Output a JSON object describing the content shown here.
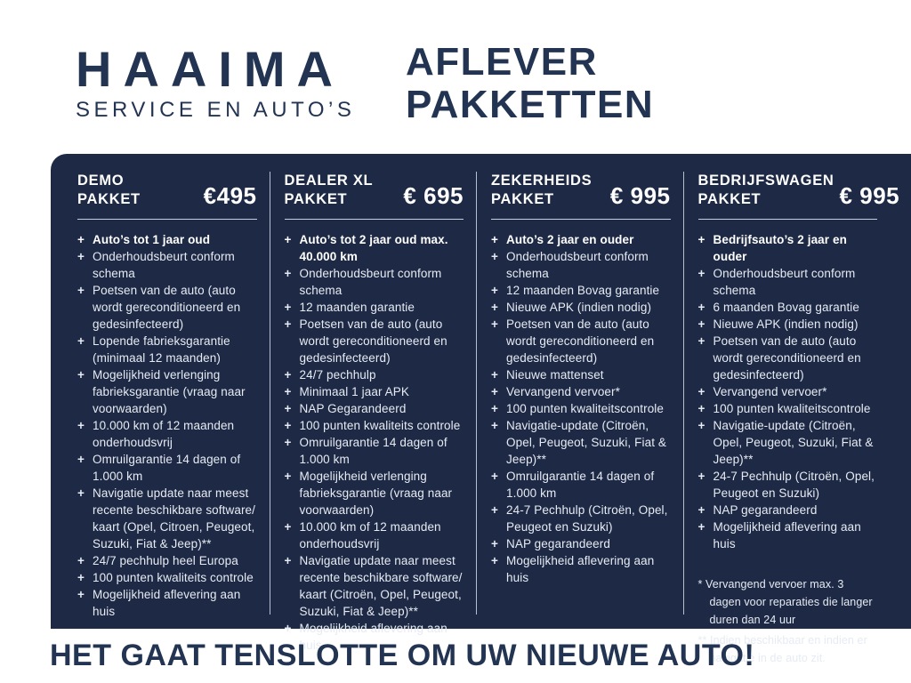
{
  "colors": {
    "navy_text": "#233453",
    "panel_background": "#1e2a45",
    "list_text": "#e6ebf3",
    "highlight_text": "#ffffff",
    "divider_line": "#d2dbe8"
  },
  "bullet_glyph": "+",
  "brand": {
    "name": "HAAIMA",
    "tagline": "SERVICE EN AUTO’S"
  },
  "title": {
    "line1": "AFLEVER",
    "line2": "PAKKETTEN"
  },
  "packages": [
    {
      "name_line1": "DEMO",
      "name_line2": "PAKKET",
      "price": "€495",
      "items": [
        {
          "text": "Auto’s tot 1 jaar oud",
          "bold": true
        },
        {
          "text": "Onderhoudsbeurt conform schema"
        },
        {
          "text": "Poetsen van de auto (auto wordt gereconditioneerd en gedesinfecteerd)"
        },
        {
          "text": "Lopende fabrieksgarantie (minimaal 12 maanden)"
        },
        {
          "text": "Mogelijkheid verlenging fabrieksgarantie (vraag naar voorwaarden)"
        },
        {
          "text": "10.000 km of 12 maanden onderhoudsvrij"
        },
        {
          "text": "Omruilgarantie 14 dagen of 1.000 km"
        },
        {
          "text": "Navigatie update naar meest recente beschikbare software/ kaart (Opel, Citroen, Peugeot, Suzuki, Fiat & Jeep)**"
        },
        {
          "text": "24/7 pechhulp heel Europa"
        },
        {
          "text": "100 punten kwaliteits controle"
        },
        {
          "text": "Mogelijkheid aflevering aan huis"
        }
      ]
    },
    {
      "name_line1": "DEALER XL",
      "name_line2": "PAKKET",
      "price": "€ 695",
      "items": [
        {
          "text": "Auto’s tot 2 jaar oud max. 40.000 km",
          "bold": true
        },
        {
          "text": "Onderhoudsbeurt conform schema"
        },
        {
          "text": "12 maanden garantie"
        },
        {
          "text": "Poetsen van de auto (auto wordt gereconditioneerd en gedesinfecteerd)"
        },
        {
          "text": "24/7 pechhulp"
        },
        {
          "text": "Minimaal 1 jaar APK"
        },
        {
          "text": "NAP Gegarandeerd"
        },
        {
          "text": "100 punten kwaliteits controle"
        },
        {
          "text": "Omruilgarantie 14 dagen of 1.000 km"
        },
        {
          "text": "Mogelijkheid verlenging fabrieksgarantie (vraag naar voorwaarden)"
        },
        {
          "text": "10.000 km of 12 maanden onderhoudsvrij"
        },
        {
          "text": "Navigatie update naar meest recente beschikbare software/ kaart (Citroën, Opel, Peugeot, Suzuki, Fiat & Jeep)**"
        },
        {
          "text": "Mogelijkheid aflevering aan huis"
        }
      ]
    },
    {
      "name_line1": "ZEKERHEIDS",
      "name_line2": "PAKKET",
      "price": "€ 995",
      "items": [
        {
          "text": "Auto’s 2 jaar en ouder",
          "bold": true
        },
        {
          "text": "Onderhoudsbeurt conform schema"
        },
        {
          "text": "12 maanden Bovag garantie"
        },
        {
          "text": "Nieuwe APK (indien nodig)"
        },
        {
          "text": "Poetsen van de auto (auto wordt gereconditioneerd en gedesinfecteerd)"
        },
        {
          "text": "Nieuwe mattenset"
        },
        {
          "text": "Vervangend vervoer*"
        },
        {
          "text": "100 punten kwaliteitscontrole"
        },
        {
          "text": "Navigatie-update (Citroën, Opel, Peugeot, Suzuki, Fiat & Jeep)**"
        },
        {
          "text": "Omruilgarantie 14 dagen of 1.000 km"
        },
        {
          "text": "24-7 Pechhulp (Citroën, Opel, Peugeot en Suzuki)"
        },
        {
          "text": "NAP gegarandeerd"
        },
        {
          "text": "Mogelijkheid aflevering aan huis"
        }
      ]
    },
    {
      "name_line1": "BEDRIJFSWAGEN",
      "name_line2": "PAKKET",
      "price": "€ 995",
      "items": [
        {
          "text": "Bedrijfsauto’s 2 jaar en ouder",
          "bold": true
        },
        {
          "text": "Onderhoudsbeurt conform schema"
        },
        {
          "text": "6 maanden Bovag garantie"
        },
        {
          "text": "Nieuwe APK (indien nodig)"
        },
        {
          "text": "Poetsen van de auto (auto wordt gereconditioneerd en gedesinfecteerd)"
        },
        {
          "text": "Vervangend vervoer*"
        },
        {
          "text": "100 punten kwaliteitscontrole"
        },
        {
          "text": "Navigatie-update (Citroën, Opel, Peugeot, Suzuki, Fiat & Jeep)**"
        },
        {
          "text": "24-7 Pechhulp (Citroën, Opel, Peugeot en Suzuki)"
        },
        {
          "text": "NAP gegarandeerd"
        },
        {
          "text": "Mogelijkheid aflevering aan huis"
        }
      ]
    }
  ],
  "footnotes": [
    "* Vervangend vervoer max. 3 dagen voor reparaties die langer duren dan 24 uur",
    "** Indien beschikbaar en indien er navigatie in de auto zit."
  ],
  "footer": {
    "tagline": "HET GAAT TENSLOTTE OM UW NIEUWE AUTO!"
  }
}
